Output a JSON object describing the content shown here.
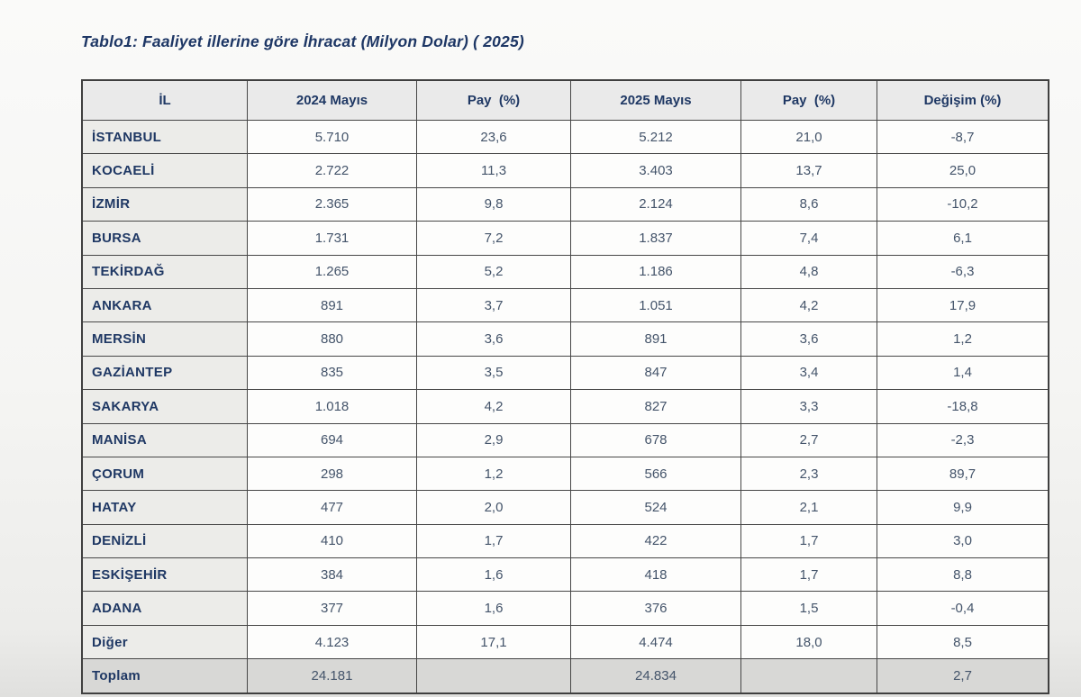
{
  "page": {
    "title": "Tablo1: Faaliyet illerine göre İhracat (Milyon Dolar) ( 2025)"
  },
  "colors": {
    "title_navy": "#1e3765",
    "header_text_navy": "#1f3864",
    "number_text": "#44546a",
    "header_bg": "#eaeaea",
    "province_col_bg": "#ecece9",
    "total_row_bg": "#d8d8d6",
    "border": "#474747"
  },
  "table": {
    "columns": [
      {
        "key": "il",
        "label": "İL"
      },
      {
        "key": "m2024",
        "label": "2024 Mayıs"
      },
      {
        "key": "pay2024",
        "label": "Pay  (%)"
      },
      {
        "key": "m2025",
        "label": "2025 Mayıs"
      },
      {
        "key": "pay2025",
        "label": "Pay  (%)"
      },
      {
        "key": "degisim",
        "label": "Değişim (%)"
      }
    ],
    "rows": [
      {
        "il": "İSTANBUL",
        "m2024": "5.710",
        "pay2024": "23,6",
        "m2025": "5.212",
        "pay2025": "21,0",
        "degisim": "-8,7"
      },
      {
        "il": "KOCAELİ",
        "m2024": "2.722",
        "pay2024": "11,3",
        "m2025": "3.403",
        "pay2025": "13,7",
        "degisim": "25,0"
      },
      {
        "il": "İZMİR",
        "m2024": "2.365",
        "pay2024": "9,8",
        "m2025": "2.124",
        "pay2025": "8,6",
        "degisim": "-10,2"
      },
      {
        "il": "BURSA",
        "m2024": "1.731",
        "pay2024": "7,2",
        "m2025": "1.837",
        "pay2025": "7,4",
        "degisim": "6,1"
      },
      {
        "il": "TEKİRDAĞ",
        "m2024": "1.265",
        "pay2024": "5,2",
        "m2025": "1.186",
        "pay2025": "4,8",
        "degisim": "-6,3"
      },
      {
        "il": "ANKARA",
        "m2024": "891",
        "pay2024": "3,7",
        "m2025": "1.051",
        "pay2025": "4,2",
        "degisim": "17,9"
      },
      {
        "il": "MERSİN",
        "m2024": "880",
        "pay2024": "3,6",
        "m2025": "891",
        "pay2025": "3,6",
        "degisim": "1,2"
      },
      {
        "il": "GAZİANTEP",
        "m2024": "835",
        "pay2024": "3,5",
        "m2025": "847",
        "pay2025": "3,4",
        "degisim": "1,4"
      },
      {
        "il": "SAKARYA",
        "m2024": "1.018",
        "pay2024": "4,2",
        "m2025": "827",
        "pay2025": "3,3",
        "degisim": "-18,8"
      },
      {
        "il": "MANİSA",
        "m2024": "694",
        "pay2024": "2,9",
        "m2025": "678",
        "pay2025": "2,7",
        "degisim": "-2,3"
      },
      {
        "il": "ÇORUM",
        "m2024": "298",
        "pay2024": "1,2",
        "m2025": "566",
        "pay2025": "2,3",
        "degisim": "89,7"
      },
      {
        "il": "HATAY",
        "m2024": "477",
        "pay2024": "2,0",
        "m2025": "524",
        "pay2025": "2,1",
        "degisim": "9,9"
      },
      {
        "il": "DENİZLİ",
        "m2024": "410",
        "pay2024": "1,7",
        "m2025": "422",
        "pay2025": "1,7",
        "degisim": "3,0"
      },
      {
        "il": "ESKİŞEHİR",
        "m2024": "384",
        "pay2024": "1,6",
        "m2025": "418",
        "pay2025": "1,7",
        "degisim": "8,8"
      },
      {
        "il": "ADANA",
        "m2024": "377",
        "pay2024": "1,6",
        "m2025": "376",
        "pay2025": "1,5",
        "degisim": "-0,4"
      },
      {
        "il": "Diğer",
        "m2024": "4.123",
        "pay2024": "17,1",
        "m2025": "4.474",
        "pay2025": "18,0",
        "degisim": "8,5"
      }
    ],
    "total": {
      "il": "Toplam",
      "m2024": "24.181",
      "pay2024": "",
      "m2025": "24.834",
      "pay2025": "",
      "degisim": "2,7"
    }
  }
}
